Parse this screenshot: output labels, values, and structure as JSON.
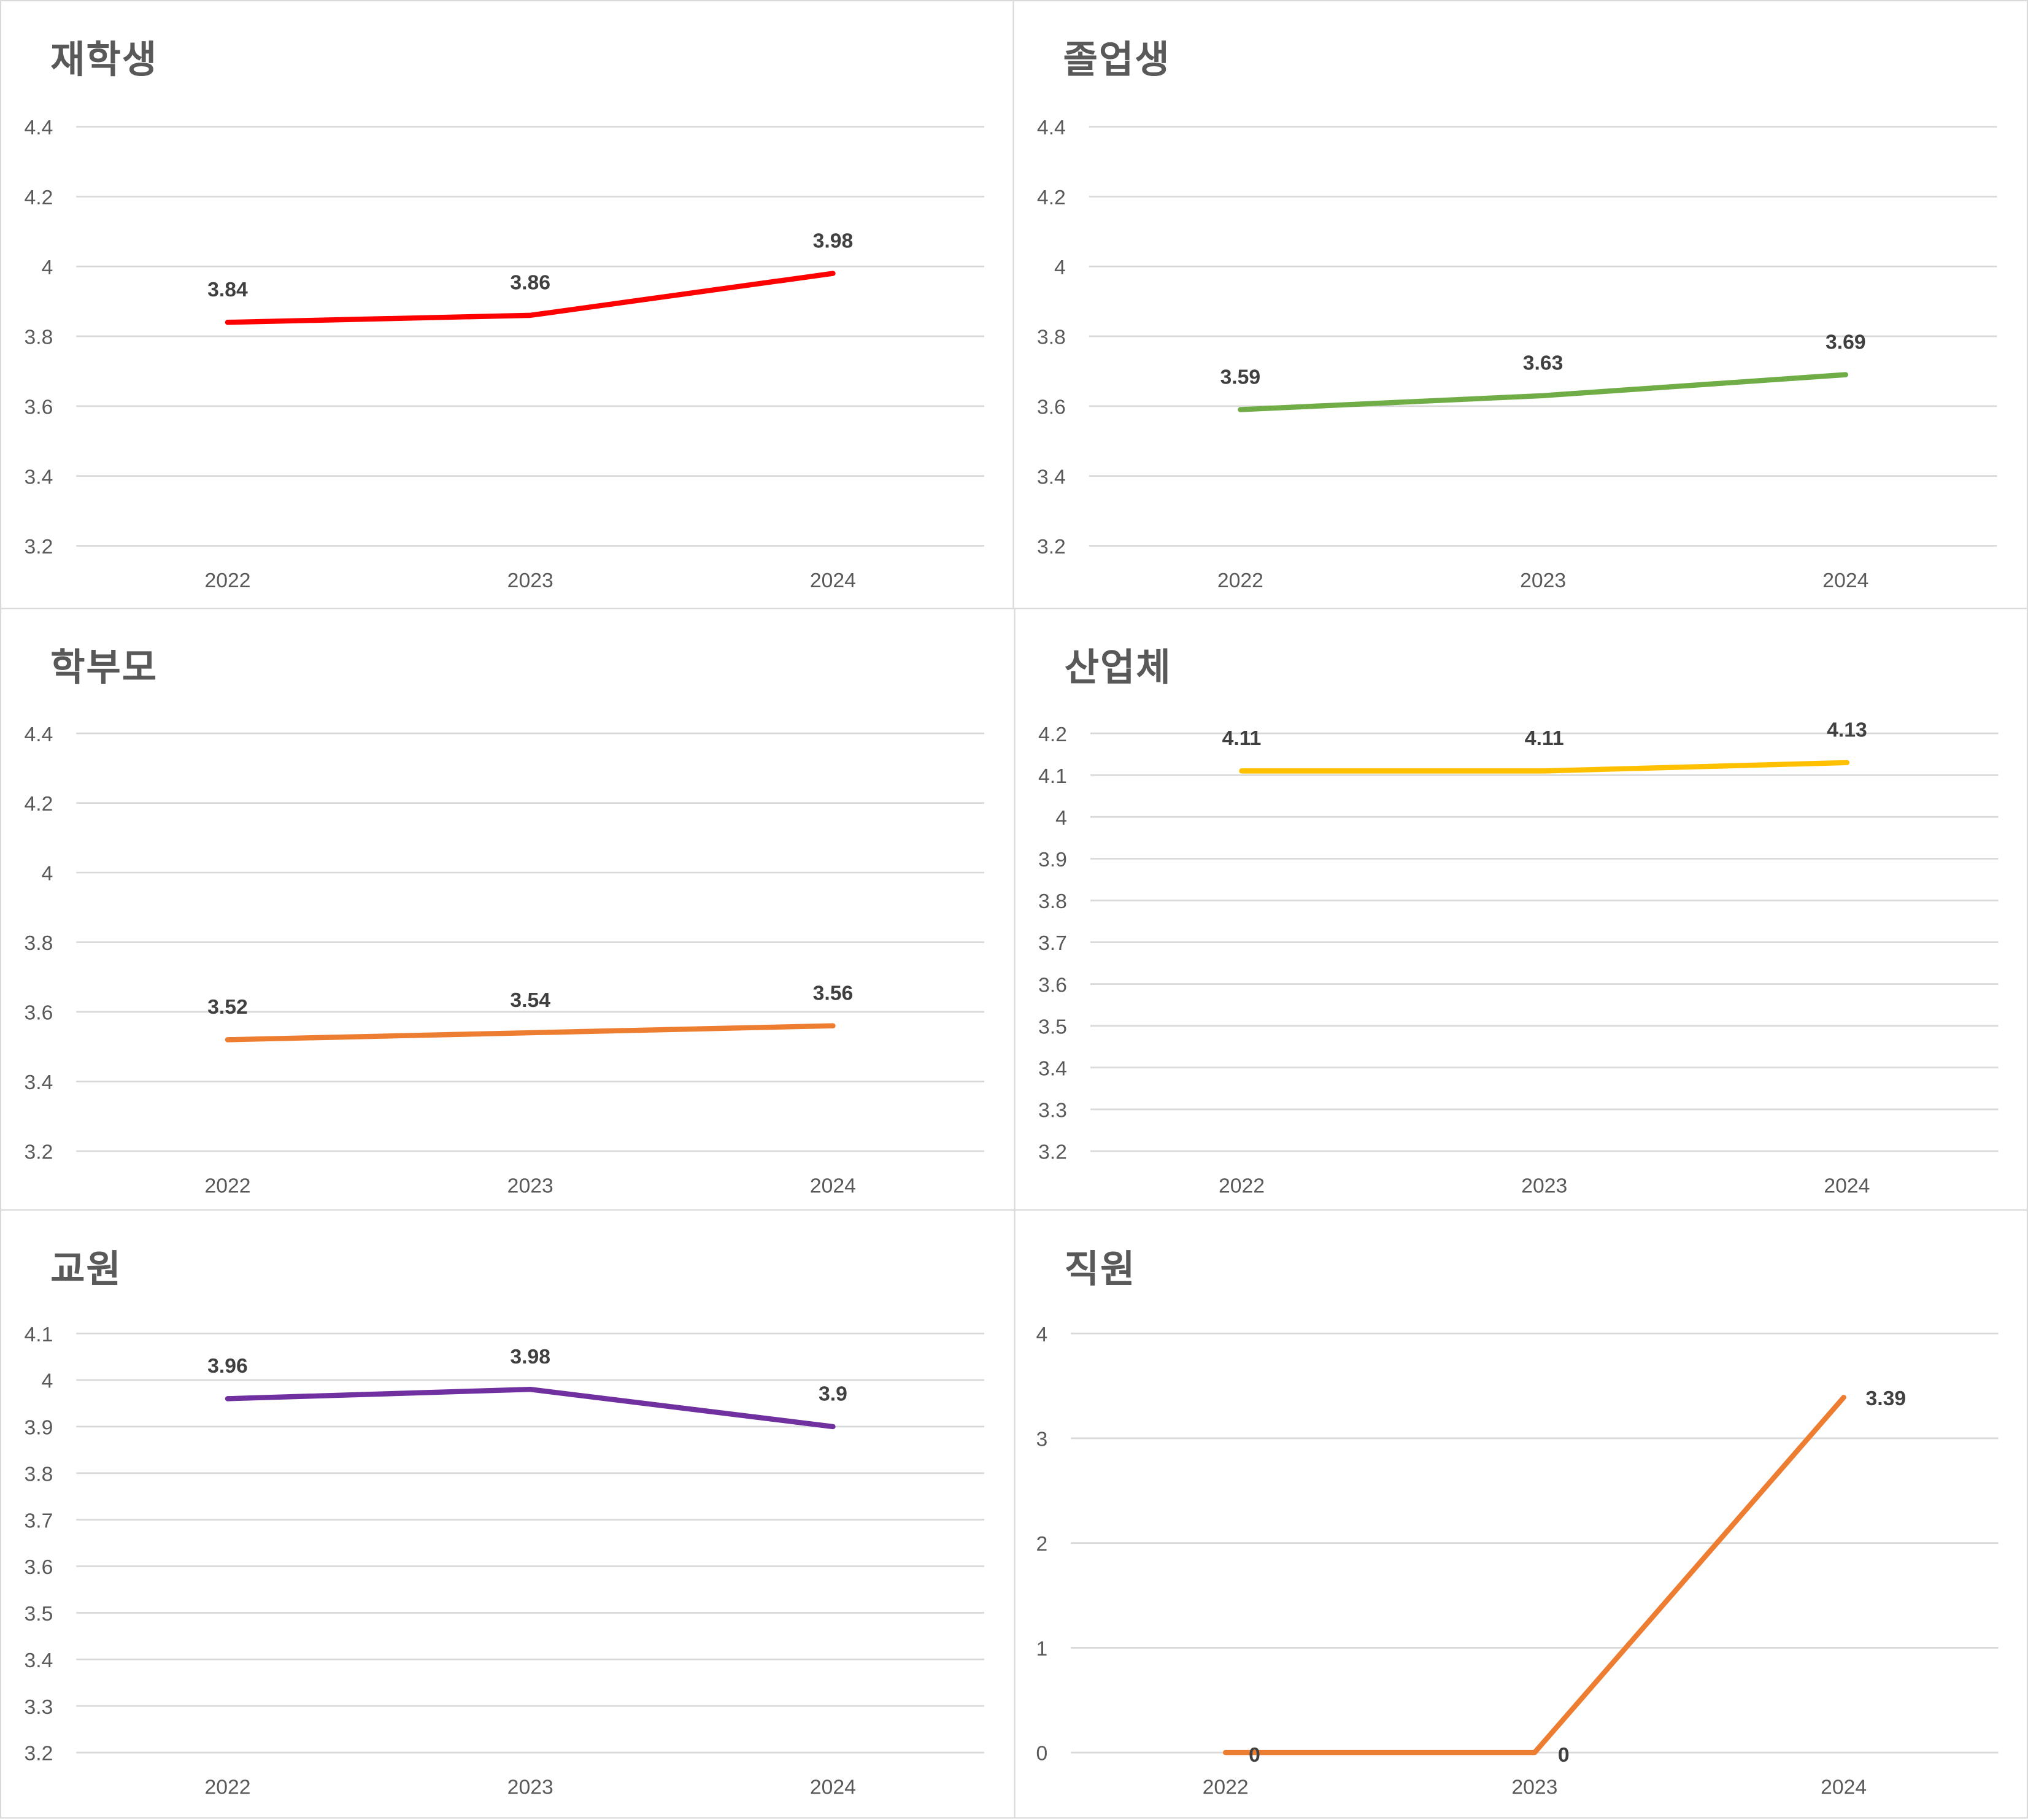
{
  "chart_data": [
    {
      "type": "line",
      "title": "재학생",
      "categories": [
        "2022",
        "2023",
        "2024"
      ],
      "values": [
        3.84,
        3.86,
        3.98
      ],
      "data_labels": [
        "3.84",
        "3.86",
        "3.98"
      ],
      "ylim": [
        3.2,
        4.4
      ],
      "yticks": [
        "3.2",
        "3.4",
        "3.6",
        "3.8",
        "4",
        "4.2",
        "4.4"
      ],
      "grid": true,
      "color": "#FF0000",
      "label_position": "above"
    },
    {
      "type": "line",
      "title": "졸업생",
      "categories": [
        "2022",
        "2023",
        "2024"
      ],
      "values": [
        3.59,
        3.63,
        3.69
      ],
      "data_labels": [
        "3.59",
        "3.63",
        "3.69"
      ],
      "ylim": [
        3.2,
        4.4
      ],
      "yticks": [
        "3.2",
        "3.4",
        "3.6",
        "3.8",
        "4",
        "4.2",
        "4.4"
      ],
      "grid": true,
      "color": "#70AD47",
      "label_position": "above"
    },
    {
      "type": "line",
      "title": "학부모",
      "categories": [
        "2022",
        "2023",
        "2024"
      ],
      "values": [
        3.52,
        3.54,
        3.56
      ],
      "data_labels": [
        "3.52",
        "3.54",
        "3.56"
      ],
      "ylim": [
        3.2,
        4.4
      ],
      "yticks": [
        "3.2",
        "3.4",
        "3.6",
        "3.8",
        "4",
        "4.2",
        "4.4"
      ],
      "grid": true,
      "color": "#ED7D31",
      "label_position": "above"
    },
    {
      "type": "line",
      "title": "산업체",
      "categories": [
        "2022",
        "2023",
        "2024"
      ],
      "values": [
        4.11,
        4.11,
        4.13
      ],
      "data_labels": [
        "4.11",
        "4.11",
        "4.13"
      ],
      "ylim": [
        3.2,
        4.2
      ],
      "yticks": [
        "3.2",
        "3.3",
        "3.4",
        "3.5",
        "3.6",
        "3.7",
        "3.8",
        "3.9",
        "4",
        "4.1",
        "4.2"
      ],
      "grid": true,
      "color": "#FFC000",
      "label_position": "above"
    },
    {
      "type": "line",
      "title": "교원",
      "categories": [
        "2022",
        "2023",
        "2024"
      ],
      "values": [
        3.96,
        3.98,
        3.9
      ],
      "data_labels": [
        "3.96",
        "3.98",
        "3.9"
      ],
      "ylim": [
        3.2,
        4.1
      ],
      "yticks": [
        "3.2",
        "3.3",
        "3.4",
        "3.5",
        "3.6",
        "3.7",
        "3.8",
        "3.9",
        "4",
        "4.1"
      ],
      "grid": true,
      "color": "#7030A0",
      "label_position": "above"
    },
    {
      "type": "line",
      "title": "직원",
      "categories": [
        "2022",
        "2023",
        "2024"
      ],
      "values": [
        0,
        0,
        3.39
      ],
      "data_labels": [
        "0",
        "0",
        "3.39"
      ],
      "ylim": [
        0,
        4
      ],
      "yticks": [
        "0",
        "1",
        "2",
        "3",
        "4"
      ],
      "grid": true,
      "color": "#ED7D31",
      "label_position": "right"
    }
  ]
}
